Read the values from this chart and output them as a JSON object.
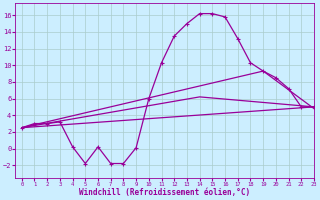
{
  "x_ticks": [
    0,
    1,
    2,
    3,
    4,
    5,
    6,
    7,
    8,
    9,
    10,
    11,
    12,
    13,
    14,
    15,
    16,
    17,
    18,
    19,
    20,
    21,
    22,
    23
  ],
  "line1_x": [
    0,
    1,
    2,
    3,
    4,
    5,
    6,
    7,
    8,
    9,
    10,
    11,
    12,
    13,
    14,
    15,
    16,
    17,
    18,
    19,
    20,
    21,
    22,
    23
  ],
  "line1_y": [
    2.5,
    3.0,
    3.0,
    3.2,
    0.2,
    -1.8,
    0.2,
    -1.8,
    -1.8,
    0.1,
    6.0,
    10.3,
    13.5,
    15.0,
    16.2,
    16.2,
    15.8,
    13.2,
    10.3,
    9.3,
    8.5,
    7.2,
    5.0,
    5.0
  ],
  "line2_x": [
    0,
    23
  ],
  "line2_y": [
    2.5,
    5.0
  ],
  "line3_x": [
    0,
    14,
    23
  ],
  "line3_y": [
    2.5,
    6.2,
    5.0
  ],
  "line4_x": [
    0,
    19,
    23
  ],
  "line4_y": [
    2.5,
    9.3,
    4.8
  ],
  "color": "#990099",
  "bg_color": "#cceeff",
  "grid_color": "#aacccc",
  "xlabel": "Windchill (Refroidissement éolien,°C)",
  "ylim": [
    -3.5,
    17.5
  ],
  "xlim": [
    -0.5,
    23
  ],
  "yticks": [
    -2,
    0,
    2,
    4,
    6,
    8,
    10,
    12,
    14,
    16
  ],
  "title_fontsize": 6,
  "tick_fontsize": 5,
  "xlabel_fontsize": 5.5
}
